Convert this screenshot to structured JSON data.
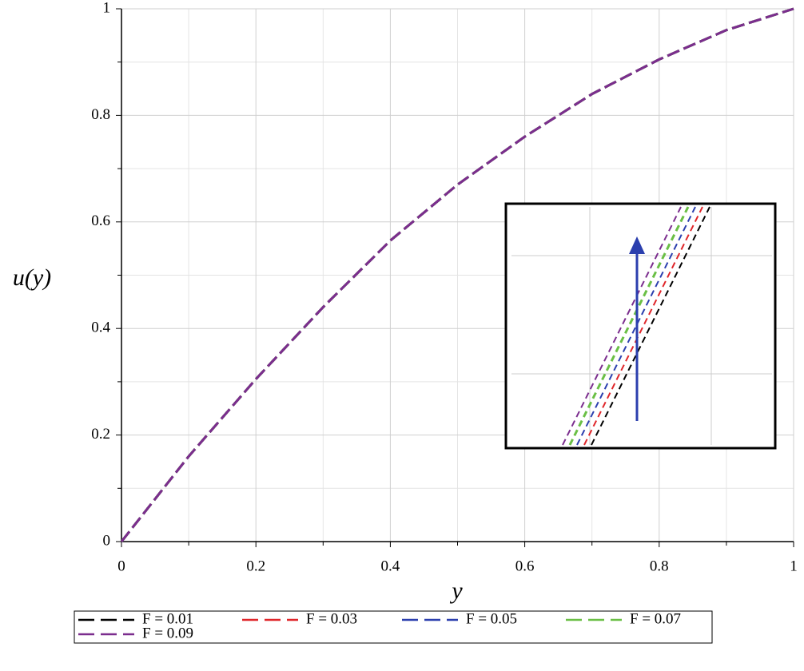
{
  "chart_data": {
    "type": "line",
    "x_label": "y",
    "y_label": "u(y)",
    "x": [
      0,
      0.1,
      0.2,
      0.3,
      0.4,
      0.5,
      0.6,
      0.7,
      0.8,
      0.9,
      1
    ],
    "series": [
      {
        "name": "F = 0.01",
        "color": "#000000",
        "values": [
          0,
          0.16,
          0.305,
          0.44,
          0.565,
          0.67,
          0.76,
          0.84,
          0.905,
          0.96,
          1
        ]
      },
      {
        "name": "F = 0.03",
        "color": "#e0262a",
        "values": [
          0,
          0.16,
          0.305,
          0.44,
          0.565,
          0.67,
          0.76,
          0.84,
          0.905,
          0.96,
          1
        ]
      },
      {
        "name": "F = 0.05",
        "color": "#2b3fae",
        "values": [
          0,
          0.16,
          0.305,
          0.44,
          0.565,
          0.67,
          0.76,
          0.84,
          0.905,
          0.96,
          1
        ]
      },
      {
        "name": "F = 0.07",
        "color": "#6abf45",
        "values": [
          0,
          0.16,
          0.305,
          0.44,
          0.565,
          0.67,
          0.76,
          0.84,
          0.905,
          0.96,
          1
        ]
      },
      {
        "name": "F = 0.09",
        "color": "#7b2d8e",
        "values": [
          0,
          0.16,
          0.305,
          0.44,
          0.565,
          0.67,
          0.76,
          0.84,
          0.905,
          0.96,
          1
        ]
      }
    ],
    "xlim": [
      0,
      1
    ],
    "ylim": [
      0,
      1
    ],
    "xticks": [
      0,
      0.2,
      0.4,
      0.6,
      0.8,
      1
    ],
    "yticks": [
      0,
      0.2,
      0.4,
      0.6,
      0.8,
      1
    ],
    "grid": true,
    "minor_grid": true
  }
}
